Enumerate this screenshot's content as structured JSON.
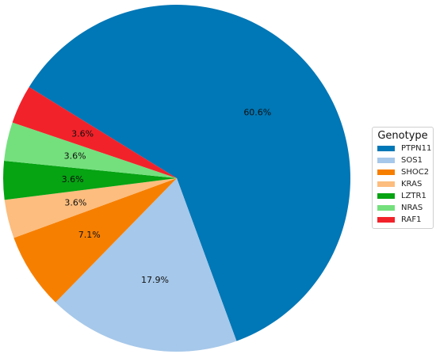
{
  "chart_data": {
    "type": "pie",
    "legend_title": "Genotype",
    "legend_position": "right",
    "slices": [
      {
        "name": "PTPN11",
        "value": 60.6,
        "label": "60.6%",
        "color": "#0077b6"
      },
      {
        "name": "SOS1",
        "value": 17.9,
        "label": "17.9%",
        "color": "#a6c8ea"
      },
      {
        "name": "SHOC2",
        "value": 7.1,
        "label": "7.1%",
        "color": "#f77f00"
      },
      {
        "name": "KRAS",
        "value": 3.6,
        "label": "3.6%",
        "color": "#fcbd7e"
      },
      {
        "name": "LZTR1",
        "value": 3.6,
        "label": "3.6%",
        "color": "#06a313"
      },
      {
        "name": "NRAS",
        "value": 3.6,
        "label": "3.6%",
        "color": "#74e07d"
      },
      {
        "name": "RAF1",
        "value": 3.6,
        "label": "3.6%",
        "color": "#f2222a"
      }
    ]
  }
}
